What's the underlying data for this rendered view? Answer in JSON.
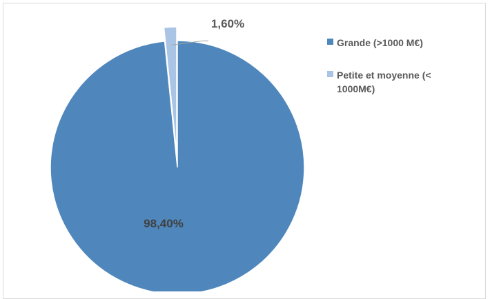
{
  "chart_data": {
    "type": "pie",
    "title": "",
    "slices": [
      {
        "label": "Grande (>1000 M€)",
        "value": 98.4,
        "display": "98,40%",
        "color": "#4f87bd"
      },
      {
        "label": "Petite et moyenne (< 1000M€)",
        "value": 1.6,
        "display": "1,60%",
        "color": "#a9c4e5"
      }
    ],
    "legend_position": "right"
  },
  "legend": {
    "items": [
      {
        "label_line1": "Grande (>1000 M€)",
        "label_line2": ""
      },
      {
        "label_line1": "Petite et moyenne (<",
        "label_line2": "1000M€)"
      }
    ]
  }
}
